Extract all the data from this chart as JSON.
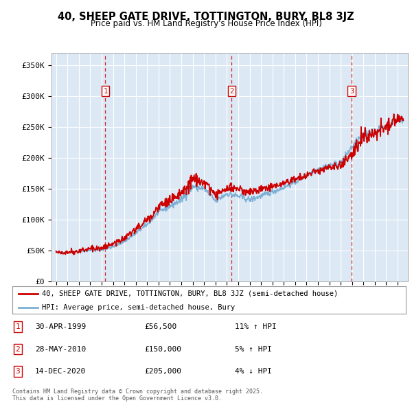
{
  "title": "40, SHEEP GATE DRIVE, TOTTINGTON, BURY, BL8 3JZ",
  "subtitle": "Price paid vs. HM Land Registry's House Price Index (HPI)",
  "ylabel_ticks": [
    "£0",
    "£50K",
    "£100K",
    "£150K",
    "£200K",
    "£250K",
    "£300K",
    "£350K"
  ],
  "ytick_values": [
    0,
    50000,
    100000,
    150000,
    200000,
    250000,
    300000,
    350000
  ],
  "ylim": [
    0,
    370000
  ],
  "background_color": "#dce9f5",
  "grid_color": "#ffffff",
  "red_line_color": "#cc0000",
  "blue_line_color": "#7bafd4",
  "dashed_color": "#cc0000",
  "sale_points": [
    {
      "year": 1999.33,
      "price": 56500,
      "label": "1"
    },
    {
      "year": 2010.42,
      "price": 150000,
      "label": "2"
    },
    {
      "year": 2020.96,
      "price": 205000,
      "label": "3"
    }
  ],
  "legend_entries": [
    "40, SHEEP GATE DRIVE, TOTTINGTON, BURY, BL8 3JZ (semi-detached house)",
    "HPI: Average price, semi-detached house, Bury"
  ],
  "table_rows": [
    {
      "num": "1",
      "date": "30-APR-1999",
      "price": "£56,500",
      "hpi": "11% ↑ HPI"
    },
    {
      "num": "2",
      "date": "28-MAY-2010",
      "price": "£150,000",
      "hpi": "5% ↑ HPI"
    },
    {
      "num": "3",
      "date": "14-DEC-2020",
      "price": "£205,000",
      "hpi": "4% ↓ HPI"
    }
  ],
  "footer": "Contains HM Land Registry data © Crown copyright and database right 2025.\nThis data is licensed under the Open Government Licence v3.0."
}
